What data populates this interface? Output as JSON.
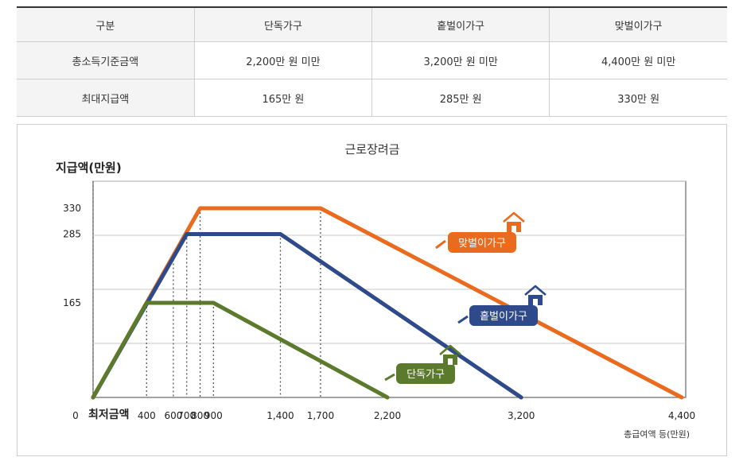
{
  "table": {
    "headers": [
      "구분",
      "단독가구",
      "홑벌이가구",
      "맞벌이가구"
    ],
    "rows": [
      {
        "label": "총소득기준금액",
        "cells": [
          "2,200만 원 미만",
          "3,200만 원 미만",
          "4,400만 원 미만"
        ]
      },
      {
        "label": "최대지급액",
        "cells": [
          "165만 원",
          "285만 원",
          "330만 원"
        ]
      }
    ]
  },
  "chart_data": {
    "type": "line",
    "title": "근로장려금",
    "ylabel": "지급액(만원)",
    "xlabel": "총급여액 등(만원)",
    "x_zero_label": "0",
    "x_min_wage_label": "최저금액",
    "xlim": [
      0,
      4400
    ],
    "ylim": [
      0,
      330
    ],
    "yticks": [
      165,
      285,
      330
    ],
    "ytick_labels": [
      "165",
      "285",
      "330"
    ],
    "xticks": [
      400,
      600,
      700,
      800,
      900,
      1400,
      1700,
      2200,
      3200,
      4400
    ],
    "xtick_labels": [
      "400",
      "600",
      "700",
      "800",
      "900",
      "1,400",
      "1,700",
      "2,200",
      "3,200",
      "4,400"
    ],
    "grid": true,
    "series": [
      {
        "name": "단독가구",
        "color": "#5b7a2c",
        "x": [
          0,
          400,
          900,
          2200
        ],
        "y": [
          0,
          165,
          165,
          0
        ]
      },
      {
        "name": "홑벌이가구",
        "color": "#2e4a8a",
        "x": [
          0,
          700,
          1400,
          3200
        ],
        "y": [
          0,
          285,
          285,
          0
        ]
      },
      {
        "name": "맞벌이가구",
        "color": "#ea6a1e",
        "x": [
          0,
          800,
          1700,
          4400
        ],
        "y": [
          0,
          330,
          330,
          0
        ]
      }
    ]
  }
}
